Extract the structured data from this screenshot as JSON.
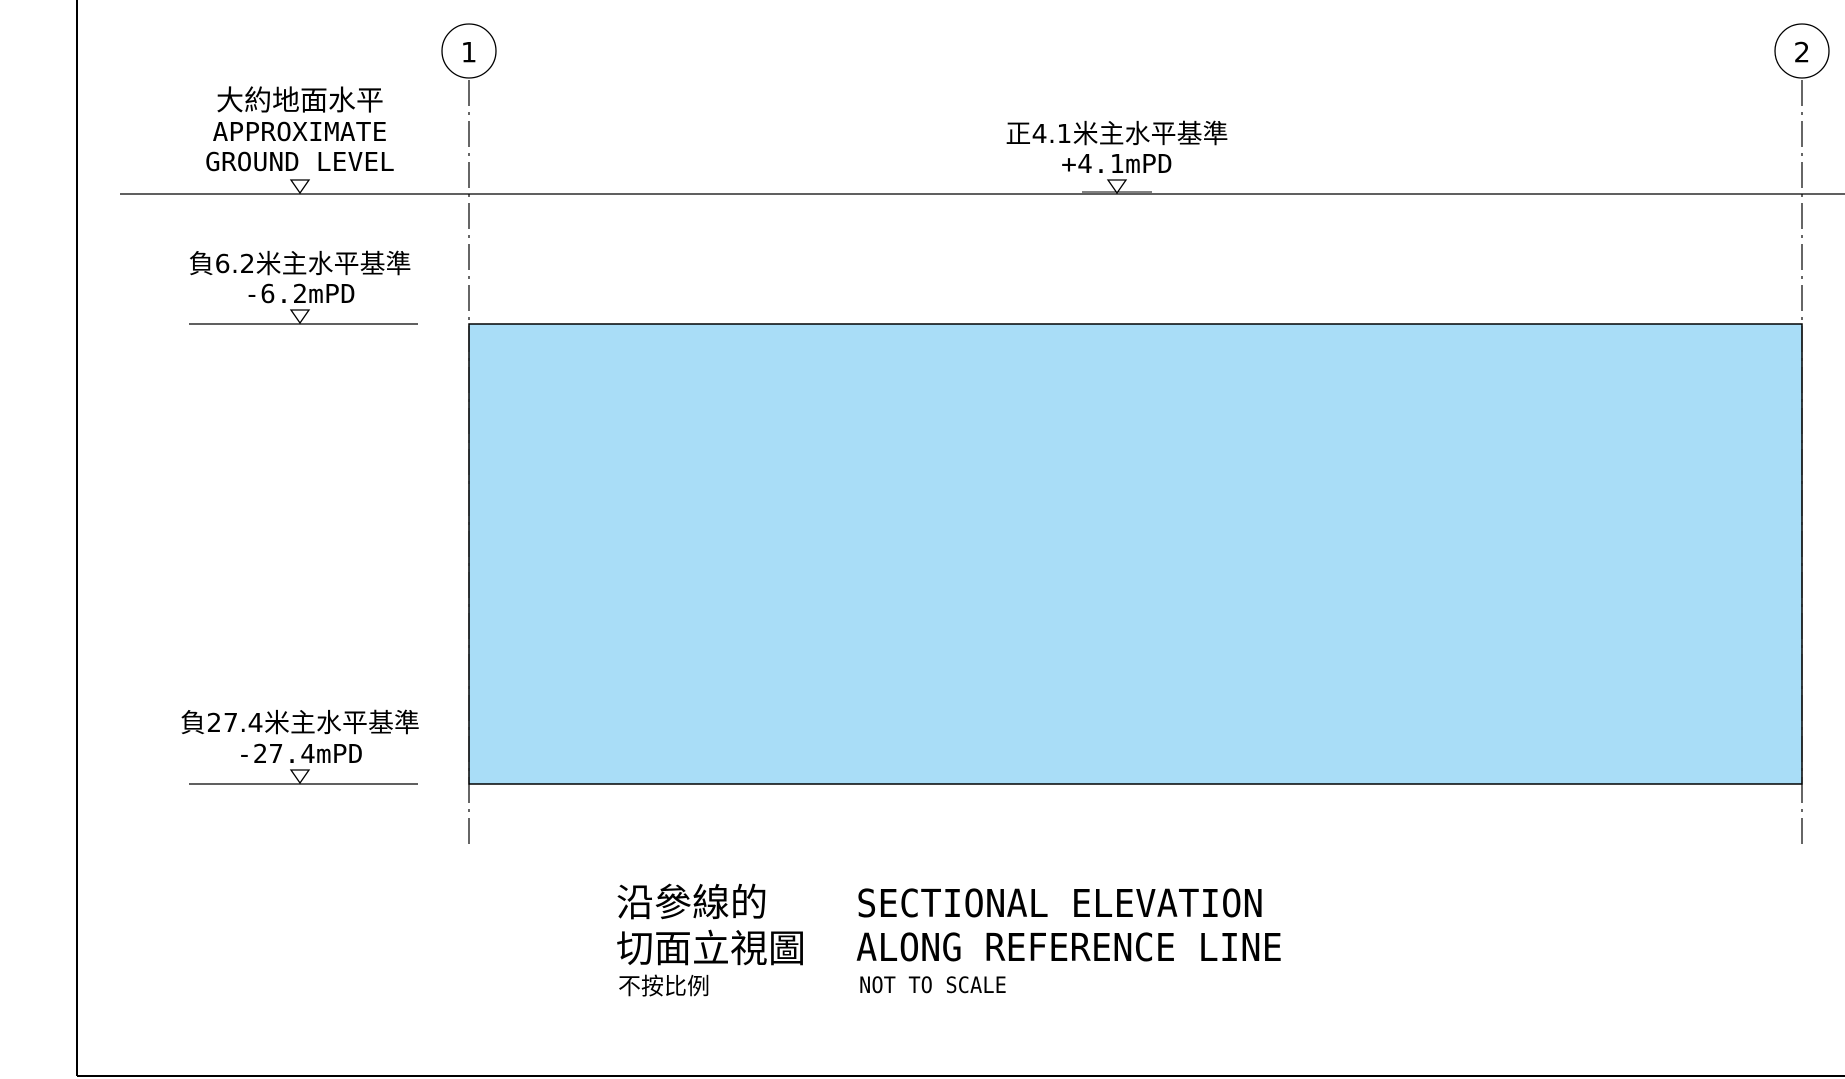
{
  "grid_markers": [
    {
      "id": "1",
      "label": "1"
    },
    {
      "id": "2",
      "label": "2"
    }
  ],
  "ground_level": {
    "zh": "大約地面水平",
    "en_line1": "APPROXIMATE",
    "en_line2": "GROUND LEVEL"
  },
  "top_level": {
    "zh": "正4.1米主水平基準",
    "en": "+4.1mPD"
  },
  "upper_level": {
    "zh": "負6.2米主水平基準",
    "en": "-6.2mPD"
  },
  "lower_level": {
    "zh": "負27.4米主水平基準",
    "en": "-27.4mPD"
  },
  "title": {
    "zh_line1": "沿參線的",
    "zh_line2": "切面立視圖",
    "zh_scale": "不按比例",
    "en_line1": "SECTIONAL ELEVATION",
    "en_line2": "ALONG REFERENCE LINE",
    "en_scale": "NOT TO SCALE"
  },
  "colors": {
    "zone_fill": "#a9ddf7",
    "line": "#000000"
  }
}
